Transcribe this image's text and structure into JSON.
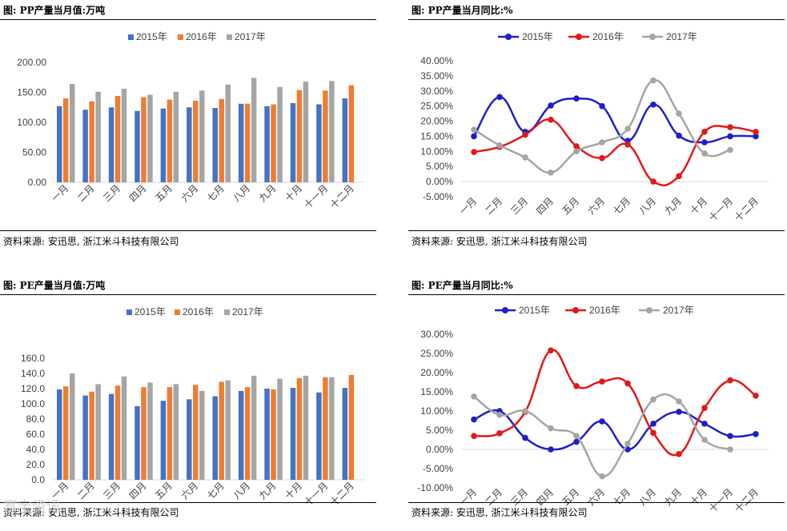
{
  "panels": [
    {
      "title": "图: PP产量当月值:万吨",
      "source": "资料来源: 安迅思, 浙江米斗科技有限公司"
    },
    {
      "title": "图: PP产量当月同比:%",
      "source": "资料来源: 安迅思, 浙江米斗科技有限公司"
    },
    {
      "title": "图: PE产量当月值:万吨",
      "source": "资料来源: 安迅思, 浙江米斗科技有限公司"
    },
    {
      "title": "图: PE产量当月同比:%",
      "source": "资料来源: 安迅思, 浙江米斗科技有限公司"
    }
  ],
  "watermark": "富宝资讯",
  "chart_data": [
    {
      "type": "bar",
      "title": "图: PP产量当月值:万吨",
      "categories": [
        "一月",
        "二月",
        "三月",
        "四月",
        "五月",
        "六月",
        "七月",
        "八月",
        "九月",
        "十月",
        "十一月",
        "十二月"
      ],
      "series": [
        {
          "name": "2015年",
          "color": "#4472C4",
          "values": [
            127,
            121,
            125,
            119,
            123,
            125,
            124,
            131,
            127,
            132,
            130,
            140
          ]
        },
        {
          "name": "2016年",
          "color": "#ED7D31",
          "values": [
            140,
            135,
            144,
            142,
            138,
            136,
            139,
            131,
            130,
            154,
            153,
            162
          ]
        },
        {
          "name": "2017年",
          "color": "#A5A5A5",
          "values": [
            164,
            151,
            156,
            146,
            151,
            153,
            163,
            174,
            159,
            168,
            169,
            null
          ]
        }
      ],
      "ylim": [
        0,
        200
      ],
      "yticks": [
        "0.00",
        "50.00",
        "100.00",
        "150.00",
        "200.00"
      ],
      "ytick_values": [
        0,
        50,
        100,
        150,
        200
      ],
      "legend": "top"
    },
    {
      "type": "line",
      "title": "图: PP产量当月同比:%",
      "categories": [
        "一月",
        "二月",
        "三月",
        "四月",
        "五月",
        "六月",
        "七月",
        "八月",
        "九月",
        "十月",
        "十一月",
        "十二月"
      ],
      "series": [
        {
          "name": "2015年",
          "color": "#1F1FC8",
          "values": [
            15.0,
            28.0,
            16.5,
            25.2,
            27.5,
            25.0,
            13.5,
            25.5,
            15.2,
            13.0,
            15.0,
            15.0
          ]
        },
        {
          "name": "2016年",
          "color": "#E0191A",
          "values": [
            9.8,
            11.5,
            15.5,
            20.5,
            11.7,
            7.8,
            12.3,
            0.0,
            1.8,
            16.5,
            18.0,
            16.5
          ]
        },
        {
          "name": "2017年",
          "color": "#A5A5A5",
          "values": [
            17.2,
            12.0,
            8.0,
            3.0,
            10.0,
            13.0,
            17.5,
            33.5,
            22.5,
            9.3,
            10.5,
            null
          ]
        }
      ],
      "ylim": [
        -5,
        40
      ],
      "yticks": [
        "-5.00%",
        "0.00%",
        "5.00%",
        "10.00%",
        "15.00%",
        "20.00%",
        "25.00%",
        "30.00%",
        "35.00%",
        "40.00%"
      ],
      "ytick_values": [
        -5,
        0,
        5,
        10,
        15,
        20,
        25,
        30,
        35,
        40
      ],
      "legend": "top"
    },
    {
      "type": "bar",
      "title": "图: PE产量当月值:万吨",
      "categories": [
        "一月",
        "二月",
        "三月",
        "四月",
        "五月",
        "六月",
        "七月",
        "八月",
        "九月",
        "十月",
        "十一月",
        "十二月"
      ],
      "series": [
        {
          "name": "2015年",
          "color": "#4472C4",
          "values": [
            119,
            111,
            113,
            97,
            104,
            106,
            110,
            117,
            120,
            121,
            115,
            121
          ]
        },
        {
          "name": "2016年",
          "color": "#ED7D31",
          "values": [
            123,
            116,
            124,
            122,
            122,
            125,
            129,
            122,
            119,
            134,
            135,
            138
          ]
        },
        {
          "name": "2017年",
          "color": "#A5A5A5",
          "values": [
            140,
            126,
            136,
            128,
            126,
            117,
            131,
            137,
            133,
            137,
            135,
            null
          ]
        }
      ],
      "ylim": [
        0,
        160
      ],
      "yticks": [
        "0.0",
        "20.0",
        "40.0",
        "60.0",
        "80.0",
        "100.0",
        "120.0",
        "140.0",
        "160.0"
      ],
      "ytick_values": [
        0,
        20,
        40,
        60,
        80,
        100,
        120,
        140,
        160
      ],
      "legend": "top"
    },
    {
      "type": "line",
      "title": "图: PE产量当月同比:%",
      "categories": [
        "一月",
        "二月",
        "三月",
        "四月",
        "五月",
        "六月",
        "七月",
        "八月",
        "九月",
        "十月",
        "十一月",
        "十二月"
      ],
      "series": [
        {
          "name": "2015年",
          "color": "#1F1FC8",
          "values": [
            7.8,
            10.0,
            3.0,
            0.0,
            2.0,
            7.3,
            0.0,
            6.7,
            9.8,
            6.7,
            3.5,
            4.0
          ]
        },
        {
          "name": "2016年",
          "color": "#E0191A",
          "values": [
            3.5,
            4.2,
            9.8,
            25.8,
            16.5,
            17.7,
            17.2,
            4.3,
            -1.2,
            10.8,
            18.0,
            14.0
          ]
        },
        {
          "name": "2017年",
          "color": "#A5A5A5",
          "values": [
            13.8,
            9.0,
            10.0,
            5.5,
            3.5,
            -7.0,
            1.5,
            13.0,
            12.5,
            2.5,
            0.0,
            null
          ]
        }
      ],
      "ylim": [
        -10,
        30
      ],
      "yticks": [
        "-10.00%",
        "-5.00%",
        "0.00%",
        "5.00%",
        "10.00%",
        "15.00%",
        "20.00%",
        "25.00%",
        "30.00%"
      ],
      "ytick_values": [
        -10,
        -5,
        0,
        5,
        10,
        15,
        20,
        25,
        30
      ],
      "legend": "top"
    }
  ]
}
